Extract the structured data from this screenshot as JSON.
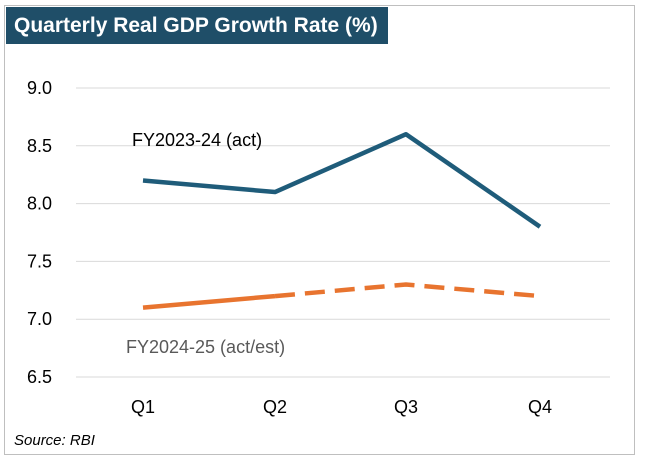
{
  "chart_data": {
    "type": "line",
    "title": "Quarterly Real GDP Growth Rate (%)",
    "categories": [
      "Q1",
      "Q2",
      "Q3",
      "Q4"
    ],
    "ylim": [
      6.5,
      9.0
    ],
    "yticks": [
      "6.5",
      "7.0",
      "7.5",
      "8.0",
      "8.5",
      "9.0"
    ],
    "grid": true,
    "series": [
      {
        "name": "FY2023-24 (act)",
        "values": [
          8.2,
          8.1,
          8.6,
          7.8
        ],
        "color": "#1f5c7a",
        "style": "solid"
      },
      {
        "name": "FY2024-25 (act/est)",
        "values": [
          7.1,
          7.2,
          7.3,
          7.2
        ],
        "color": "#e8742f",
        "style": "solid-then-dashed",
        "dashed_from_category": "Q2"
      }
    ],
    "source": "Source: RBI"
  }
}
